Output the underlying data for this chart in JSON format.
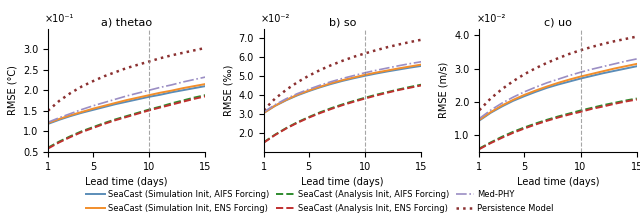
{
  "panels": [
    {
      "title": "a) thetao",
      "ylabel": "RMSE (°C)",
      "scale_exp": -1,
      "scale_str": "×10⁻¹",
      "ylim": [
        0.5,
        3.5
      ],
      "yticks": [
        0.5,
        1.0,
        1.5,
        2.0,
        2.5,
        3.0
      ],
      "curves": {
        "seacast_sim_aifs": [
          1.18,
          1.28,
          1.37,
          1.45,
          1.52,
          1.59,
          1.66,
          1.72,
          1.78,
          1.84,
          1.89,
          1.95,
          2.0,
          2.05,
          2.1
        ],
        "seacast_sim_ens": [
          1.2,
          1.3,
          1.39,
          1.47,
          1.55,
          1.62,
          1.69,
          1.76,
          1.82,
          1.88,
          1.94,
          1.99,
          2.05,
          2.1,
          2.15
        ],
        "med_phy": [
          1.22,
          1.33,
          1.43,
          1.53,
          1.62,
          1.7,
          1.78,
          1.86,
          1.93,
          2.0,
          2.07,
          2.13,
          2.2,
          2.26,
          2.32
        ],
        "seacast_ana_aifs": [
          0.6,
          0.75,
          0.88,
          1.0,
          1.1,
          1.2,
          1.29,
          1.37,
          1.45,
          1.53,
          1.6,
          1.68,
          1.75,
          1.82,
          1.88
        ],
        "seacast_ana_ens": [
          0.58,
          0.73,
          0.86,
          0.98,
          1.08,
          1.18,
          1.27,
          1.35,
          1.43,
          1.51,
          1.58,
          1.65,
          1.72,
          1.79,
          1.85
        ],
        "persistence": [
          1.5,
          1.74,
          1.93,
          2.09,
          2.22,
          2.34,
          2.44,
          2.54,
          2.62,
          2.7,
          2.78,
          2.85,
          2.91,
          2.97,
          3.03
        ]
      }
    },
    {
      "title": "b) so",
      "ylabel": "RMSE (‰)",
      "scale_exp": -2,
      "scale_str": "×10⁻²",
      "ylim": [
        1.0,
        7.5
      ],
      "yticks": [
        2.0,
        3.0,
        4.0,
        5.0,
        6.0,
        7.0
      ],
      "curves": {
        "seacast_sim_aifs": [
          3.05,
          3.42,
          3.72,
          3.98,
          4.2,
          4.4,
          4.58,
          4.74,
          4.88,
          5.01,
          5.13,
          5.24,
          5.34,
          5.44,
          5.53
        ],
        "seacast_sim_ens": [
          3.05,
          3.43,
          3.74,
          4.01,
          4.23,
          4.43,
          4.62,
          4.78,
          4.92,
          5.06,
          5.18,
          5.29,
          5.4,
          5.5,
          5.6
        ],
        "med_phy": [
          3.1,
          3.48,
          3.8,
          4.07,
          4.3,
          4.51,
          4.7,
          4.87,
          5.02,
          5.17,
          5.3,
          5.42,
          5.54,
          5.65,
          5.75
        ],
        "seacast_ana_aifs": [
          1.5,
          1.9,
          2.25,
          2.56,
          2.83,
          3.08,
          3.3,
          3.5,
          3.68,
          3.85,
          4.01,
          4.15,
          4.29,
          4.42,
          4.54
        ],
        "seacast_ana_ens": [
          1.48,
          1.88,
          2.23,
          2.53,
          2.8,
          3.04,
          3.26,
          3.46,
          3.64,
          3.81,
          3.97,
          4.12,
          4.26,
          4.38,
          4.5
        ],
        "persistence": [
          3.2,
          3.8,
          4.27,
          4.67,
          5.01,
          5.31,
          5.57,
          5.8,
          6.01,
          6.19,
          6.36,
          6.52,
          6.66,
          6.79,
          6.91
        ]
      }
    },
    {
      "title": "c) uo",
      "ylabel": "RMSE (m/s)",
      "scale_exp": -2,
      "scale_str": "×10⁻²",
      "ylim": [
        0.5,
        4.2
      ],
      "yticks": [
        1.0,
        2.0,
        3.0,
        4.0
      ],
      "curves": {
        "seacast_sim_aifs": [
          1.44,
          1.67,
          1.86,
          2.03,
          2.17,
          2.3,
          2.42,
          2.52,
          2.61,
          2.7,
          2.78,
          2.86,
          2.93,
          3.0,
          3.07
        ],
        "seacast_sim_ens": [
          1.46,
          1.69,
          1.89,
          2.06,
          2.21,
          2.34,
          2.46,
          2.57,
          2.67,
          2.76,
          2.84,
          2.92,
          3.0,
          3.07,
          3.14
        ],
        "med_phy": [
          1.5,
          1.75,
          1.96,
          2.14,
          2.3,
          2.44,
          2.57,
          2.68,
          2.79,
          2.89,
          2.98,
          3.06,
          3.14,
          3.22,
          3.29
        ],
        "seacast_ana_aifs": [
          0.6,
          0.78,
          0.95,
          1.1,
          1.23,
          1.35,
          1.46,
          1.56,
          1.65,
          1.74,
          1.82,
          1.9,
          1.97,
          2.04,
          2.1
        ],
        "seacast_ana_ens": [
          0.58,
          0.76,
          0.92,
          1.07,
          1.2,
          1.32,
          1.43,
          1.53,
          1.62,
          1.7,
          1.79,
          1.86,
          1.94,
          2.01,
          2.07
        ],
        "persistence": [
          1.75,
          2.1,
          2.38,
          2.62,
          2.83,
          3.01,
          3.17,
          3.31,
          3.44,
          3.55,
          3.65,
          3.74,
          3.82,
          3.89,
          3.96
        ]
      }
    }
  ],
  "x": [
    1,
    2,
    3,
    4,
    5,
    6,
    7,
    8,
    9,
    10,
    11,
    12,
    13,
    14,
    15
  ],
  "vline_x": 10,
  "colors": {
    "seacast_sim_aifs": "#5B8DB8",
    "seacast_sim_ens": "#F28E2B",
    "med_phy": "#9B8EC4",
    "seacast_ana_aifs": "#2E8B2E",
    "seacast_ana_ens": "#C03030",
    "persistence": "#8B3030"
  },
  "draw_order": [
    "seacast_sim_aifs",
    "seacast_sim_ens",
    "med_phy",
    "seacast_ana_aifs",
    "seacast_ana_ens",
    "persistence"
  ],
  "line_styles": {
    "seacast_sim_aifs": [
      "-",
      1.4
    ],
    "seacast_sim_ens": [
      "-",
      1.4
    ],
    "med_phy": [
      "-.",
      1.2
    ],
    "seacast_ana_aifs": [
      "--",
      1.4
    ],
    "seacast_ana_ens": [
      "--",
      1.4
    ],
    "persistence": [
      ":",
      1.8
    ]
  },
  "legend_entries": [
    {
      "label": "SeaCast (Simulation Init, AIFS Forcing)",
      "key": "seacast_sim_aifs"
    },
    {
      "label": "SeaCast (Simulation Init, ENS Forcing)",
      "key": "seacast_sim_ens"
    },
    {
      "label": "SeaCast (Analysis Init, AIFS Forcing)",
      "key": "seacast_ana_aifs"
    },
    {
      "label": "SeaCast (Analysis Init, ENS Forcing)",
      "key": "seacast_ana_ens"
    },
    {
      "label": "Med-PHY",
      "key": "med_phy"
    },
    {
      "label": "Persistence Model",
      "key": "persistence"
    }
  ]
}
